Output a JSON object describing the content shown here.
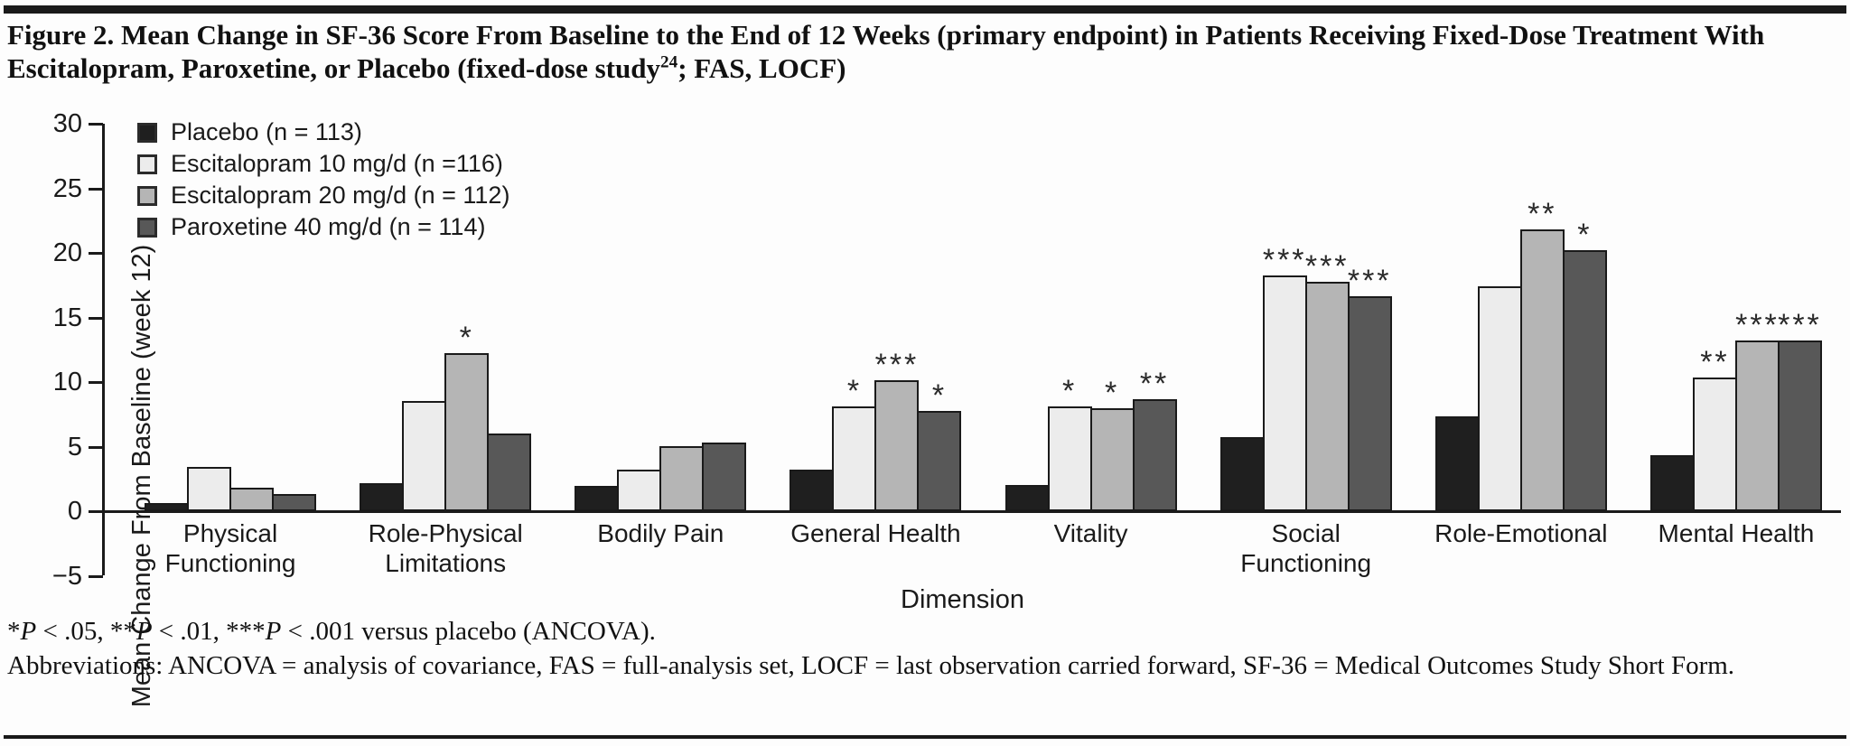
{
  "title": {
    "pre": "Figure 2. Mean Change in SF-36 Score From Baseline to the End of 12 Weeks (primary endpoint) in Patients Receiving Fixed-Dose Treatment With Escitalopram, Paroxetine, or Placebo (fixed-dose study",
    "sup": "24",
    "post": "; FAS, LOCF)"
  },
  "footnotes": {
    "significance": "*P < .05, **P < .01, ***P < .001 versus placebo (ANCOVA).",
    "abbreviations": "Abbreviations: ANCOVA = analysis of covariance, FAS = full-analysis set, LOCF = last observation carried forward, SF-36 = Medical Outcomes Study Short Form."
  },
  "chart_data": {
    "type": "bar",
    "categories": [
      "Physical\nFunctioning",
      "Role-Physical\nLimitations",
      "Bodily Pain",
      "General Health",
      "Vitality",
      "Social\nFunctioning",
      "Role-Emotional",
      "Mental Health"
    ],
    "xlabel": "Dimension",
    "ylabel": "Mean Change From Baseline (week 12)",
    "ylim": [
      -5,
      30
    ],
    "yticks": [
      30,
      25,
      20,
      15,
      10,
      5,
      0,
      -5
    ],
    "grid": false,
    "legend_position": "top-left",
    "significance_key": {
      "*": "P < .05",
      "**": "P < .01",
      "***": "P < .001"
    },
    "series": [
      {
        "name": "Placebo (n = 113)",
        "color": "#1f1f1f",
        "values": [
          0.5,
          2.0,
          1.8,
          3.1,
          1.9,
          5.6,
          7.2,
          4.2
        ],
        "sig": [
          "",
          "",
          "",
          "",
          "",
          "",
          "",
          ""
        ]
      },
      {
        "name": "Escitalopram 10 mg/d (n =116)",
        "color": "#ececec",
        "values": [
          3.3,
          8.4,
          3.1,
          8.0,
          8.0,
          18.1,
          17.3,
          10.2
        ],
        "sig": [
          "",
          "",
          "",
          "*",
          "*",
          "***",
          "",
          "**"
        ]
      },
      {
        "name": "Escitalopram 20 mg/d (n = 112)",
        "color": "#b5b5b5",
        "values": [
          1.7,
          12.1,
          4.9,
          10.0,
          7.8,
          17.6,
          21.7,
          13.1
        ],
        "sig": [
          "",
          "*",
          "",
          "***",
          "*",
          "***",
          "**",
          "***"
        ]
      },
      {
        "name": "Paroxetine 40 mg/d (n = 114)",
        "color": "#585858",
        "values": [
          1.2,
          5.9,
          5.2,
          7.6,
          8.5,
          16.5,
          20.1,
          13.1
        ],
        "sig": [
          "",
          "",
          "",
          "*",
          "**",
          "***",
          "*",
          "***"
        ]
      }
    ]
  }
}
